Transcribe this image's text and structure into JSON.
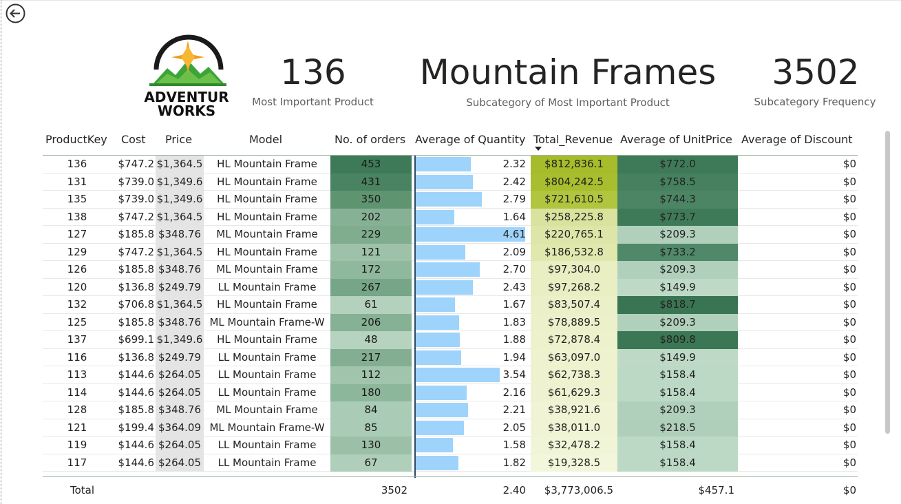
{
  "back_icon": "arrow-left-circle-icon",
  "logo": {
    "line1": "ADVENTUR",
    "line2": "WORKS"
  },
  "kpis": [
    {
      "value": "136",
      "label": "Most Important Product"
    },
    {
      "value": "Mountain Frames",
      "label": "Subcategory of Most Important Product"
    },
    {
      "value": "3502",
      "label": "Subcategory Frequency"
    }
  ],
  "table": {
    "headers": {
      "key": "ProductKey",
      "cost": "Cost",
      "price": "Price",
      "model": "Model",
      "orders": "No. of orders",
      "qty": "Average of Quantity",
      "revenue": "Total_Revenue",
      "unit": "Average of UnitPrice",
      "discount": "Average of Discount"
    },
    "sort_column": "Total_Revenue",
    "qty_max": 4.61,
    "rows": [
      {
        "key": "136",
        "cost": "$747.2",
        "price": "$1,364.5",
        "model": "HL Mountain Frame",
        "orders": "453",
        "qty": 2.32,
        "qty_label": "2.32",
        "revenue": "$812,836.1",
        "unit": "$772.0",
        "discount": "$0",
        "orders_bg": "#3e7a57",
        "rev_bg": "#a7bc2a",
        "unit_bg": "#3f7a58"
      },
      {
        "key": "131",
        "cost": "$739.0",
        "price": "$1,349.6",
        "model": "HL Mountain Frame",
        "orders": "431",
        "qty": 2.42,
        "qty_label": "2.42",
        "revenue": "$804,242.5",
        "unit": "$758.5",
        "discount": "$0",
        "orders_bg": "#4a8361",
        "rev_bg": "#a9be2e",
        "unit_bg": "#46805e"
      },
      {
        "key": "135",
        "cost": "$739.0",
        "price": "$1,349.6",
        "model": "HL Mountain Frame",
        "orders": "350",
        "qty": 2.79,
        "qty_label": "2.79",
        "revenue": "$721,610.5",
        "unit": "$744.3",
        "discount": "$0",
        "orders_bg": "#5f9471",
        "rev_bg": "#b2c53f",
        "unit_bg": "#4c8563"
      },
      {
        "key": "138",
        "cost": "$747.2",
        "price": "$1,364.5",
        "model": "HL Mountain Frame",
        "orders": "202",
        "qty": 1.64,
        "qty_label": "1.64",
        "revenue": "$258,225.8",
        "unit": "$773.7",
        "discount": "$0",
        "orders_bg": "#86b194",
        "rev_bg": "#d9e39e",
        "unit_bg": "#3f7a58"
      },
      {
        "key": "127",
        "cost": "$185.8",
        "price": "$348.76",
        "model": "ML Mountain Frame",
        "orders": "229",
        "qty": 4.61,
        "qty_label": "4.61",
        "revenue": "$220,765.1",
        "unit": "$209.3",
        "discount": "$0",
        "orders_bg": "#81ad8f",
        "rev_bg": "#dde6a8",
        "unit_bg": "#b1d0bc"
      },
      {
        "key": "129",
        "cost": "$747.2",
        "price": "$1,364.5",
        "model": "HL Mountain Frame",
        "orders": "121",
        "qty": 2.09,
        "qty_label": "2.09",
        "revenue": "$186,532.8",
        "unit": "$733.2",
        "discount": "$0",
        "orders_bg": "#9ec2a9",
        "rev_bg": "#e0e8ae",
        "unit_bg": "#50886a"
      },
      {
        "key": "126",
        "cost": "$185.8",
        "price": "$348.76",
        "model": "ML Mountain Frame",
        "orders": "172",
        "qty": 2.7,
        "qty_label": "2.70",
        "revenue": "$97,304.0",
        "unit": "$209.3",
        "discount": "$0",
        "orders_bg": "#8fb89d",
        "rev_bg": "#e9eec3",
        "unit_bg": "#b1d0bc"
      },
      {
        "key": "120",
        "cost": "$136.8",
        "price": "$249.79",
        "model": "LL Mountain Frame",
        "orders": "267",
        "qty": 2.43,
        "qty_label": "2.43",
        "revenue": "$97,268.2",
        "unit": "$149.9",
        "discount": "$0",
        "orders_bg": "#76a687",
        "rev_bg": "#e9eec3",
        "unit_bg": "#bedac7"
      },
      {
        "key": "132",
        "cost": "$706.8",
        "price": "$1,364.5",
        "model": "HL Mountain Frame",
        "orders": "61",
        "qty": 1.67,
        "qty_label": "1.67",
        "revenue": "$83,507.4",
        "unit": "$818.7",
        "discount": "$0",
        "orders_bg": "#b3d1bd",
        "rev_bg": "#ebf0c8",
        "unit_bg": "#3a7553"
      },
      {
        "key": "125",
        "cost": "$185.8",
        "price": "$348.76",
        "model": "ML Mountain Frame-W",
        "orders": "206",
        "qty": 1.83,
        "qty_label": "1.83",
        "revenue": "$78,889.5",
        "unit": "$209.3",
        "discount": "$0",
        "orders_bg": "#86b194",
        "rev_bg": "#ecf1cb",
        "unit_bg": "#b1d0bc"
      },
      {
        "key": "137",
        "cost": "$699.1",
        "price": "$1,349.6",
        "model": "HL Mountain Frame",
        "orders": "48",
        "qty": 1.88,
        "qty_label": "1.88",
        "revenue": "$72,878.4",
        "unit": "$809.8",
        "discount": "$0",
        "orders_bg": "#b6d3bf",
        "rev_bg": "#edf1cc",
        "unit_bg": "#3c7755"
      },
      {
        "key": "116",
        "cost": "$136.8",
        "price": "$249.79",
        "model": "LL Mountain Frame",
        "orders": "217",
        "qty": 1.94,
        "qty_label": "1.94",
        "revenue": "$63,097.0",
        "unit": "$149.9",
        "discount": "$0",
        "orders_bg": "#83ae91",
        "rev_bg": "#eef2cf",
        "unit_bg": "#bedac7"
      },
      {
        "key": "113",
        "cost": "$144.6",
        "price": "$264.05",
        "model": "LL Mountain Frame",
        "orders": "112",
        "qty": 3.54,
        "qty_label": "3.54",
        "revenue": "$62,738.3",
        "unit": "$158.4",
        "discount": "$0",
        "orders_bg": "#a1c4ac",
        "rev_bg": "#eef2cf",
        "unit_bg": "#bcd9c5"
      },
      {
        "key": "114",
        "cost": "$144.6",
        "price": "$264.05",
        "model": "LL Mountain Frame",
        "orders": "180",
        "qty": 2.16,
        "qty_label": "2.16",
        "revenue": "$61,629.3",
        "unit": "$158.4",
        "discount": "$0",
        "orders_bg": "#8db79b",
        "rev_bg": "#eef2d0",
        "unit_bg": "#bcd9c5"
      },
      {
        "key": "128",
        "cost": "$185.8",
        "price": "$348.76",
        "model": "ML Mountain Frame",
        "orders": "84",
        "qty": 2.21,
        "qty_label": "2.21",
        "revenue": "$38,921.6",
        "unit": "$209.3",
        "discount": "$0",
        "orders_bg": "#aacbb5",
        "rev_bg": "#f0f4d5",
        "unit_bg": "#b1d0bc"
      },
      {
        "key": "121",
        "cost": "$199.4",
        "price": "$364.09",
        "model": "ML Mountain Frame-W",
        "orders": "85",
        "qty": 2.05,
        "qty_label": "2.05",
        "revenue": "$38,011.0",
        "unit": "$218.5",
        "discount": "$0",
        "orders_bg": "#aacbb5",
        "rev_bg": "#f0f4d5",
        "unit_bg": "#b0cfba"
      },
      {
        "key": "119",
        "cost": "$144.6",
        "price": "$264.05",
        "model": "LL Mountain Frame",
        "orders": "130",
        "qty": 1.58,
        "qty_label": "1.58",
        "revenue": "$32,478.2",
        "unit": "$158.4",
        "discount": "$0",
        "orders_bg": "#9cc0a7",
        "rev_bg": "#f1f5d7",
        "unit_bg": "#bcd9c5"
      },
      {
        "key": "117",
        "cost": "$144.6",
        "price": "$264.05",
        "model": "LL Mountain Frame",
        "orders": "67",
        "qty": 1.82,
        "qty_label": "1.82",
        "revenue": "$19,328.5",
        "unit": "$158.4",
        "discount": "$0",
        "orders_bg": "#b0cfba",
        "rev_bg": "#f2f6da",
        "unit_bg": "#bcd9c5"
      }
    ],
    "total": {
      "label": "Total",
      "orders": "3502",
      "qty": "2.40",
      "revenue": "$3,773,006.5",
      "unit": "$457.1",
      "discount": "$0"
    }
  }
}
